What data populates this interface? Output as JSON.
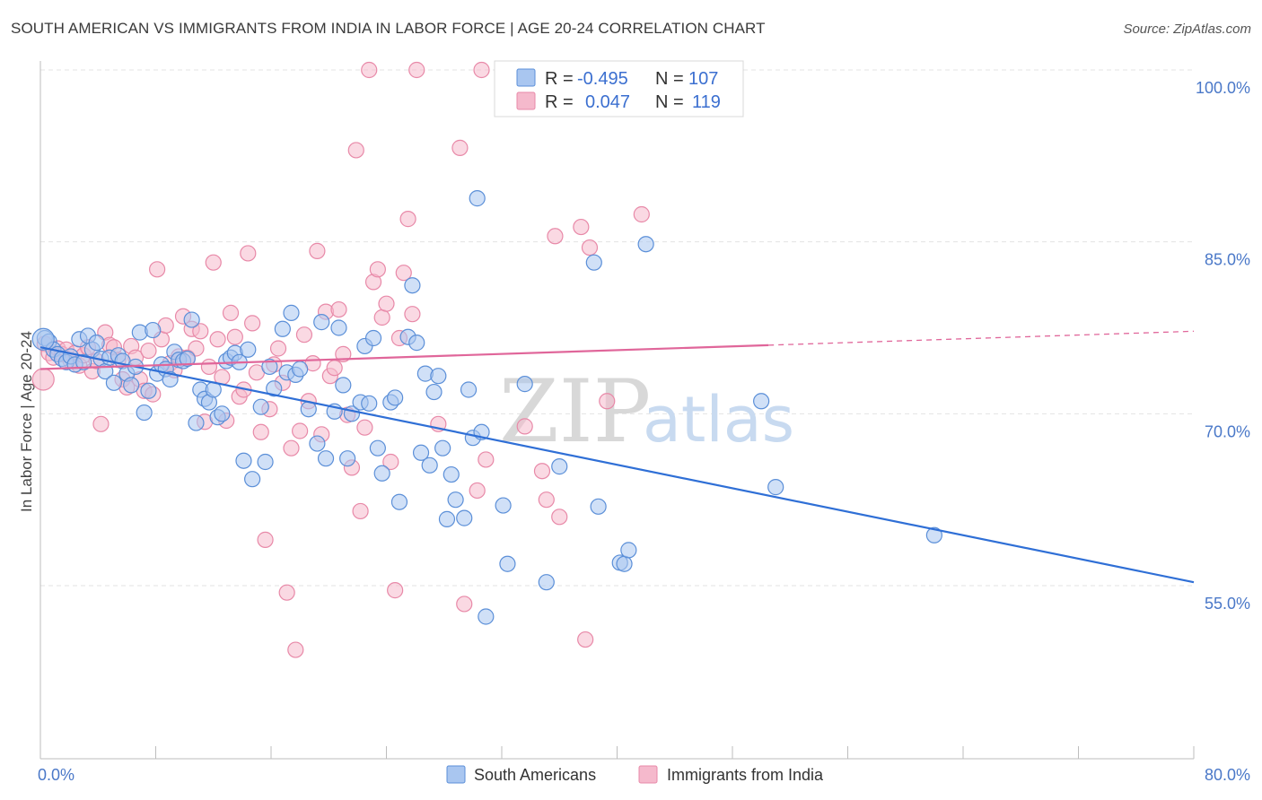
{
  "title": "SOUTH AMERICAN VS IMMIGRANTS FROM INDIA IN LABOR FORCE | AGE 20-24 CORRELATION CHART",
  "source": "Source: ZipAtlas.com",
  "watermark": {
    "zip": "ZIP",
    "atlas": "atlas"
  },
  "colors": {
    "blue_fill": "#a9c6f0",
    "blue_stroke": "#5b8fd8",
    "blue_line": "#2f6fd6",
    "pink_fill": "#f5b9cc",
    "pink_stroke": "#e889a8",
    "pink_line": "#e0669a",
    "grid": "#e3e3e3",
    "tick_text": "#4a78c8"
  },
  "legend": {
    "rows": [
      {
        "r_label": "R =",
        "r_value": "-0.495",
        "n_label": "N =",
        "n_value": "107",
        "series": "blue"
      },
      {
        "r_label": "R =",
        "r_value": "0.047",
        "n_label": "N =",
        "n_value": "119",
        "series": "pink"
      }
    ]
  },
  "bottom_legend": [
    {
      "label": "South Americans",
      "series": "blue"
    },
    {
      "label": "Immigrants from India",
      "series": "pink"
    }
  ],
  "chart_data": {
    "type": "scatter",
    "title": "SOUTH AMERICAN VS IMMIGRANTS FROM INDIA IN LABOR FORCE | AGE 20-24 CORRELATION CHART",
    "xlabel": "",
    "ylabel": "In Labor Force | Age 20-24",
    "xlim": [
      0,
      80
    ],
    "ylim": [
      38,
      102
    ],
    "x_tick_labels": [
      "0.0%",
      "80.0%"
    ],
    "y_ticks": [
      55,
      70,
      85,
      100
    ],
    "y_tick_labels": [
      "55.0%",
      "70.0%",
      "85.0%",
      "100.0%"
    ],
    "series": [
      {
        "name": "South Americans",
        "color": "blue",
        "R": -0.495,
        "N": 107,
        "trend": {
          "x": [
            0,
            80
          ],
          "y": [
            75.8,
            55.3
          ],
          "dashed_from": null
        },
        "points": [
          [
            0.3,
            76.6
          ],
          [
            0.6,
            76.3
          ],
          [
            0.9,
            75.6
          ],
          [
            1.2,
            75.2
          ],
          [
            1.5,
            74.8
          ],
          [
            1.8,
            74.5
          ],
          [
            2.1,
            75.0
          ],
          [
            2.4,
            74.3
          ],
          [
            2.7,
            76.5
          ],
          [
            3.0,
            74.5
          ],
          [
            3.3,
            76.8
          ],
          [
            3.6,
            75.6
          ],
          [
            3.9,
            76.2
          ],
          [
            4.2,
            74.8
          ],
          [
            4.5,
            73.7
          ],
          [
            4.8,
            74.9
          ],
          [
            5.1,
            72.7
          ],
          [
            5.4,
            75.1
          ],
          [
            5.7,
            74.6
          ],
          [
            6.0,
            73.5
          ],
          [
            6.3,
            72.5
          ],
          [
            6.6,
            74.1
          ],
          [
            6.9,
            77.1
          ],
          [
            7.2,
            70.1
          ],
          [
            7.5,
            72.0
          ],
          [
            7.8,
            77.3
          ],
          [
            8.1,
            73.5
          ],
          [
            8.4,
            74.3
          ],
          [
            8.7,
            73.9
          ],
          [
            9.0,
            73.0
          ],
          [
            9.3,
            75.4
          ],
          [
            9.6,
            74.7
          ],
          [
            9.9,
            74.6
          ],
          [
            10.2,
            74.8
          ],
          [
            10.5,
            78.2
          ],
          [
            10.8,
            69.2
          ],
          [
            11.1,
            72.1
          ],
          [
            11.4,
            71.3
          ],
          [
            11.7,
            71.0
          ],
          [
            12.0,
            72.1
          ],
          [
            12.3,
            69.7
          ],
          [
            12.6,
            70.0
          ],
          [
            12.9,
            74.6
          ],
          [
            13.2,
            74.9
          ],
          [
            13.5,
            75.3
          ],
          [
            13.8,
            74.5
          ],
          [
            14.1,
            65.9
          ],
          [
            14.4,
            75.6
          ],
          [
            14.7,
            64.3
          ],
          [
            15.3,
            70.6
          ],
          [
            15.6,
            65.8
          ],
          [
            15.9,
            74.1
          ],
          [
            16.2,
            72.2
          ],
          [
            16.8,
            77.4
          ],
          [
            17.1,
            73.6
          ],
          [
            17.4,
            78.8
          ],
          [
            17.7,
            73.4
          ],
          [
            18.0,
            73.9
          ],
          [
            18.6,
            70.4
          ],
          [
            19.2,
            67.4
          ],
          [
            19.5,
            78.0
          ],
          [
            19.8,
            66.1
          ],
          [
            20.4,
            70.2
          ],
          [
            20.7,
            77.5
          ],
          [
            21.0,
            72.5
          ],
          [
            21.3,
            66.1
          ],
          [
            21.6,
            70.0
          ],
          [
            22.2,
            71.0
          ],
          [
            22.5,
            75.9
          ],
          [
            22.8,
            70.9
          ],
          [
            23.1,
            76.6
          ],
          [
            23.4,
            67.0
          ],
          [
            23.7,
            64.8
          ],
          [
            24.3,
            71.0
          ],
          [
            24.6,
            71.4
          ],
          [
            24.9,
            62.3
          ],
          [
            25.5,
            76.7
          ],
          [
            25.8,
            81.2
          ],
          [
            26.1,
            76.2
          ],
          [
            26.4,
            66.6
          ],
          [
            26.7,
            73.5
          ],
          [
            27.0,
            65.5
          ],
          [
            27.3,
            71.9
          ],
          [
            27.6,
            73.3
          ],
          [
            27.9,
            67.0
          ],
          [
            28.2,
            60.8
          ],
          [
            28.5,
            64.7
          ],
          [
            28.8,
            62.5
          ],
          [
            29.4,
            60.9
          ],
          [
            29.7,
            72.1
          ],
          [
            30.0,
            67.9
          ],
          [
            30.3,
            88.8
          ],
          [
            30.6,
            68.4
          ],
          [
            30.9,
            52.3
          ],
          [
            32.1,
            62.0
          ],
          [
            32.4,
            56.9
          ],
          [
            33.6,
            72.6
          ],
          [
            35.1,
            55.3
          ],
          [
            36.0,
            65.4
          ],
          [
            38.4,
            83.2
          ],
          [
            38.7,
            61.9
          ],
          [
            40.2,
            57.0
          ],
          [
            40.5,
            56.9
          ],
          [
            40.8,
            58.1
          ],
          [
            42.0,
            84.8
          ],
          [
            50.0,
            71.1
          ],
          [
            51.0,
            63.6
          ],
          [
            62.0,
            59.4
          ]
        ],
        "big_points": [
          [
            0.2,
            76.5
          ]
        ]
      },
      {
        "name": "Immigrants from India",
        "color": "pink",
        "R": 0.047,
        "N": 119,
        "trend": {
          "x": [
            0,
            80
          ],
          "y": [
            73.9,
            77.2
          ],
          "dashed_from": 50.5
        },
        "points": [
          [
            0.3,
            76.1
          ],
          [
            0.6,
            75.3
          ],
          [
            0.9,
            74.9
          ],
          [
            1.2,
            75.7
          ],
          [
            1.5,
            75.2
          ],
          [
            1.8,
            75.6
          ],
          [
            2.1,
            74.6
          ],
          [
            2.4,
            75.3
          ],
          [
            2.7,
            74.2
          ],
          [
            3.0,
            75.1
          ],
          [
            3.3,
            75.8
          ],
          [
            3.6,
            73.7
          ],
          [
            3.9,
            74.6
          ],
          [
            4.2,
            69.1
          ],
          [
            4.5,
            77.1
          ],
          [
            4.8,
            76.0
          ],
          [
            5.1,
            75.8
          ],
          [
            5.4,
            74.7
          ],
          [
            5.7,
            73.0
          ],
          [
            6.0,
            72.3
          ],
          [
            6.3,
            75.9
          ],
          [
            6.6,
            74.9
          ],
          [
            6.9,
            73.0
          ],
          [
            7.2,
            72.0
          ],
          [
            7.5,
            75.5
          ],
          [
            7.8,
            71.7
          ],
          [
            8.1,
            82.6
          ],
          [
            8.4,
            76.5
          ],
          [
            8.7,
            77.7
          ],
          [
            9.0,
            74.4
          ],
          [
            9.3,
            73.8
          ],
          [
            9.6,
            75.0
          ],
          [
            9.9,
            78.5
          ],
          [
            10.2,
            74.9
          ],
          [
            10.5,
            77.4
          ],
          [
            10.8,
            75.7
          ],
          [
            11.1,
            77.2
          ],
          [
            11.4,
            69.3
          ],
          [
            11.7,
            74.1
          ],
          [
            12.0,
            83.2
          ],
          [
            12.3,
            76.5
          ],
          [
            12.6,
            73.2
          ],
          [
            12.9,
            69.4
          ],
          [
            13.2,
            78.8
          ],
          [
            13.5,
            76.7
          ],
          [
            13.8,
            71.5
          ],
          [
            14.1,
            72.1
          ],
          [
            14.4,
            84.0
          ],
          [
            14.7,
            77.9
          ],
          [
            15.0,
            73.6
          ],
          [
            15.3,
            68.4
          ],
          [
            15.6,
            59.0
          ],
          [
            15.9,
            70.4
          ],
          [
            16.2,
            74.3
          ],
          [
            16.5,
            75.7
          ],
          [
            16.8,
            72.7
          ],
          [
            17.1,
            54.4
          ],
          [
            17.4,
            67.0
          ],
          [
            17.7,
            49.4
          ],
          [
            18.0,
            68.5
          ],
          [
            18.3,
            76.9
          ],
          [
            18.6,
            71.1
          ],
          [
            18.9,
            74.4
          ],
          [
            19.2,
            84.2
          ],
          [
            19.5,
            68.2
          ],
          [
            19.8,
            78.9
          ],
          [
            20.1,
            73.3
          ],
          [
            20.4,
            74.0
          ],
          [
            20.7,
            79.1
          ],
          [
            21.0,
            75.2
          ],
          [
            21.3,
            69.9
          ],
          [
            21.6,
            65.3
          ],
          [
            21.9,
            93.0
          ],
          [
            22.2,
            61.5
          ],
          [
            22.5,
            68.8
          ],
          [
            22.8,
            100.0
          ],
          [
            23.1,
            81.5
          ],
          [
            23.4,
            82.6
          ],
          [
            23.7,
            78.4
          ],
          [
            24.0,
            79.6
          ],
          [
            24.3,
            65.8
          ],
          [
            24.6,
            54.6
          ],
          [
            24.9,
            76.6
          ],
          [
            25.2,
            82.3
          ],
          [
            25.5,
            87.0
          ],
          [
            25.8,
            78.7
          ],
          [
            26.1,
            100.0
          ],
          [
            27.6,
            69.1
          ],
          [
            29.1,
            93.2
          ],
          [
            29.4,
            53.4
          ],
          [
            30.3,
            63.3
          ],
          [
            30.6,
            100.0
          ],
          [
            30.9,
            66.0
          ],
          [
            33.6,
            68.9
          ],
          [
            34.8,
            65.0
          ],
          [
            35.1,
            62.5
          ],
          [
            35.7,
            85.5
          ],
          [
            36.0,
            61.0
          ],
          [
            37.5,
            86.3
          ],
          [
            37.8,
            50.3
          ],
          [
            38.1,
            84.5
          ],
          [
            39.3,
            71.1
          ],
          [
            41.7,
            87.4
          ]
        ],
        "big_points": [
          [
            0.2,
            73.0
          ]
        ]
      }
    ]
  }
}
